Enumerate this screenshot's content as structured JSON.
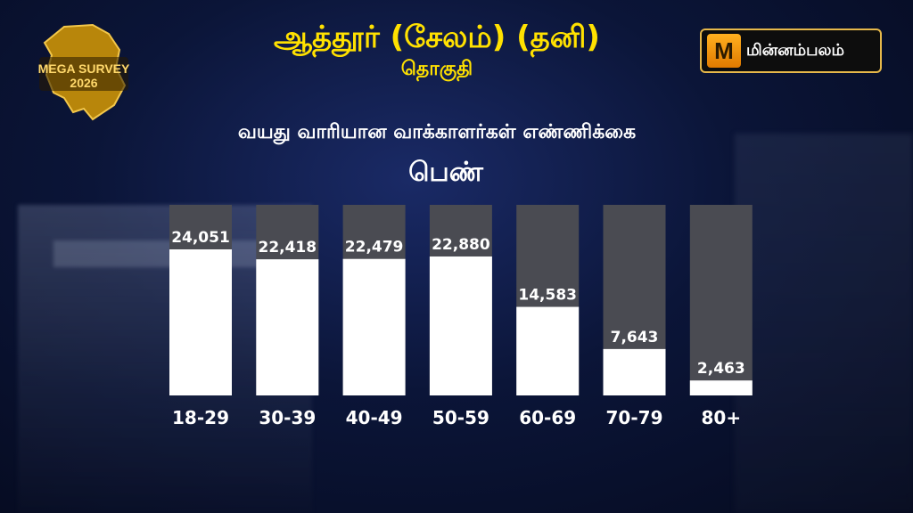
{
  "header": {
    "title": "ஆத்தூர் (சேலம்) (தனி)",
    "subtitle": "தொகுதி",
    "badge_line1": "MEGA SURVEY",
    "badge_line2": "2026",
    "brand_text": "மின்னம்பலம்",
    "brand_mark": "M"
  },
  "colors": {
    "title": "#ffe100",
    "bar_fill": "#ffffff",
    "bar_track": "#4a4b52"
  },
  "chart_data": {
    "type": "bar",
    "title": "வயது வாரியான வாக்காளர்கள் எண்ணிக்கை",
    "series_label": "பெண்",
    "categories": [
      "18-29",
      "30-39",
      "40-49",
      "50-59",
      "60-69",
      "70-79",
      "80+"
    ],
    "values": [
      24051,
      22418,
      22479,
      22880,
      14583,
      7643,
      2463
    ],
    "value_labels": [
      "24,051",
      "22,418",
      "22,479",
      "22,880",
      "14,583",
      "7,643",
      "2,463"
    ],
    "ylim": [
      0,
      30000
    ]
  }
}
